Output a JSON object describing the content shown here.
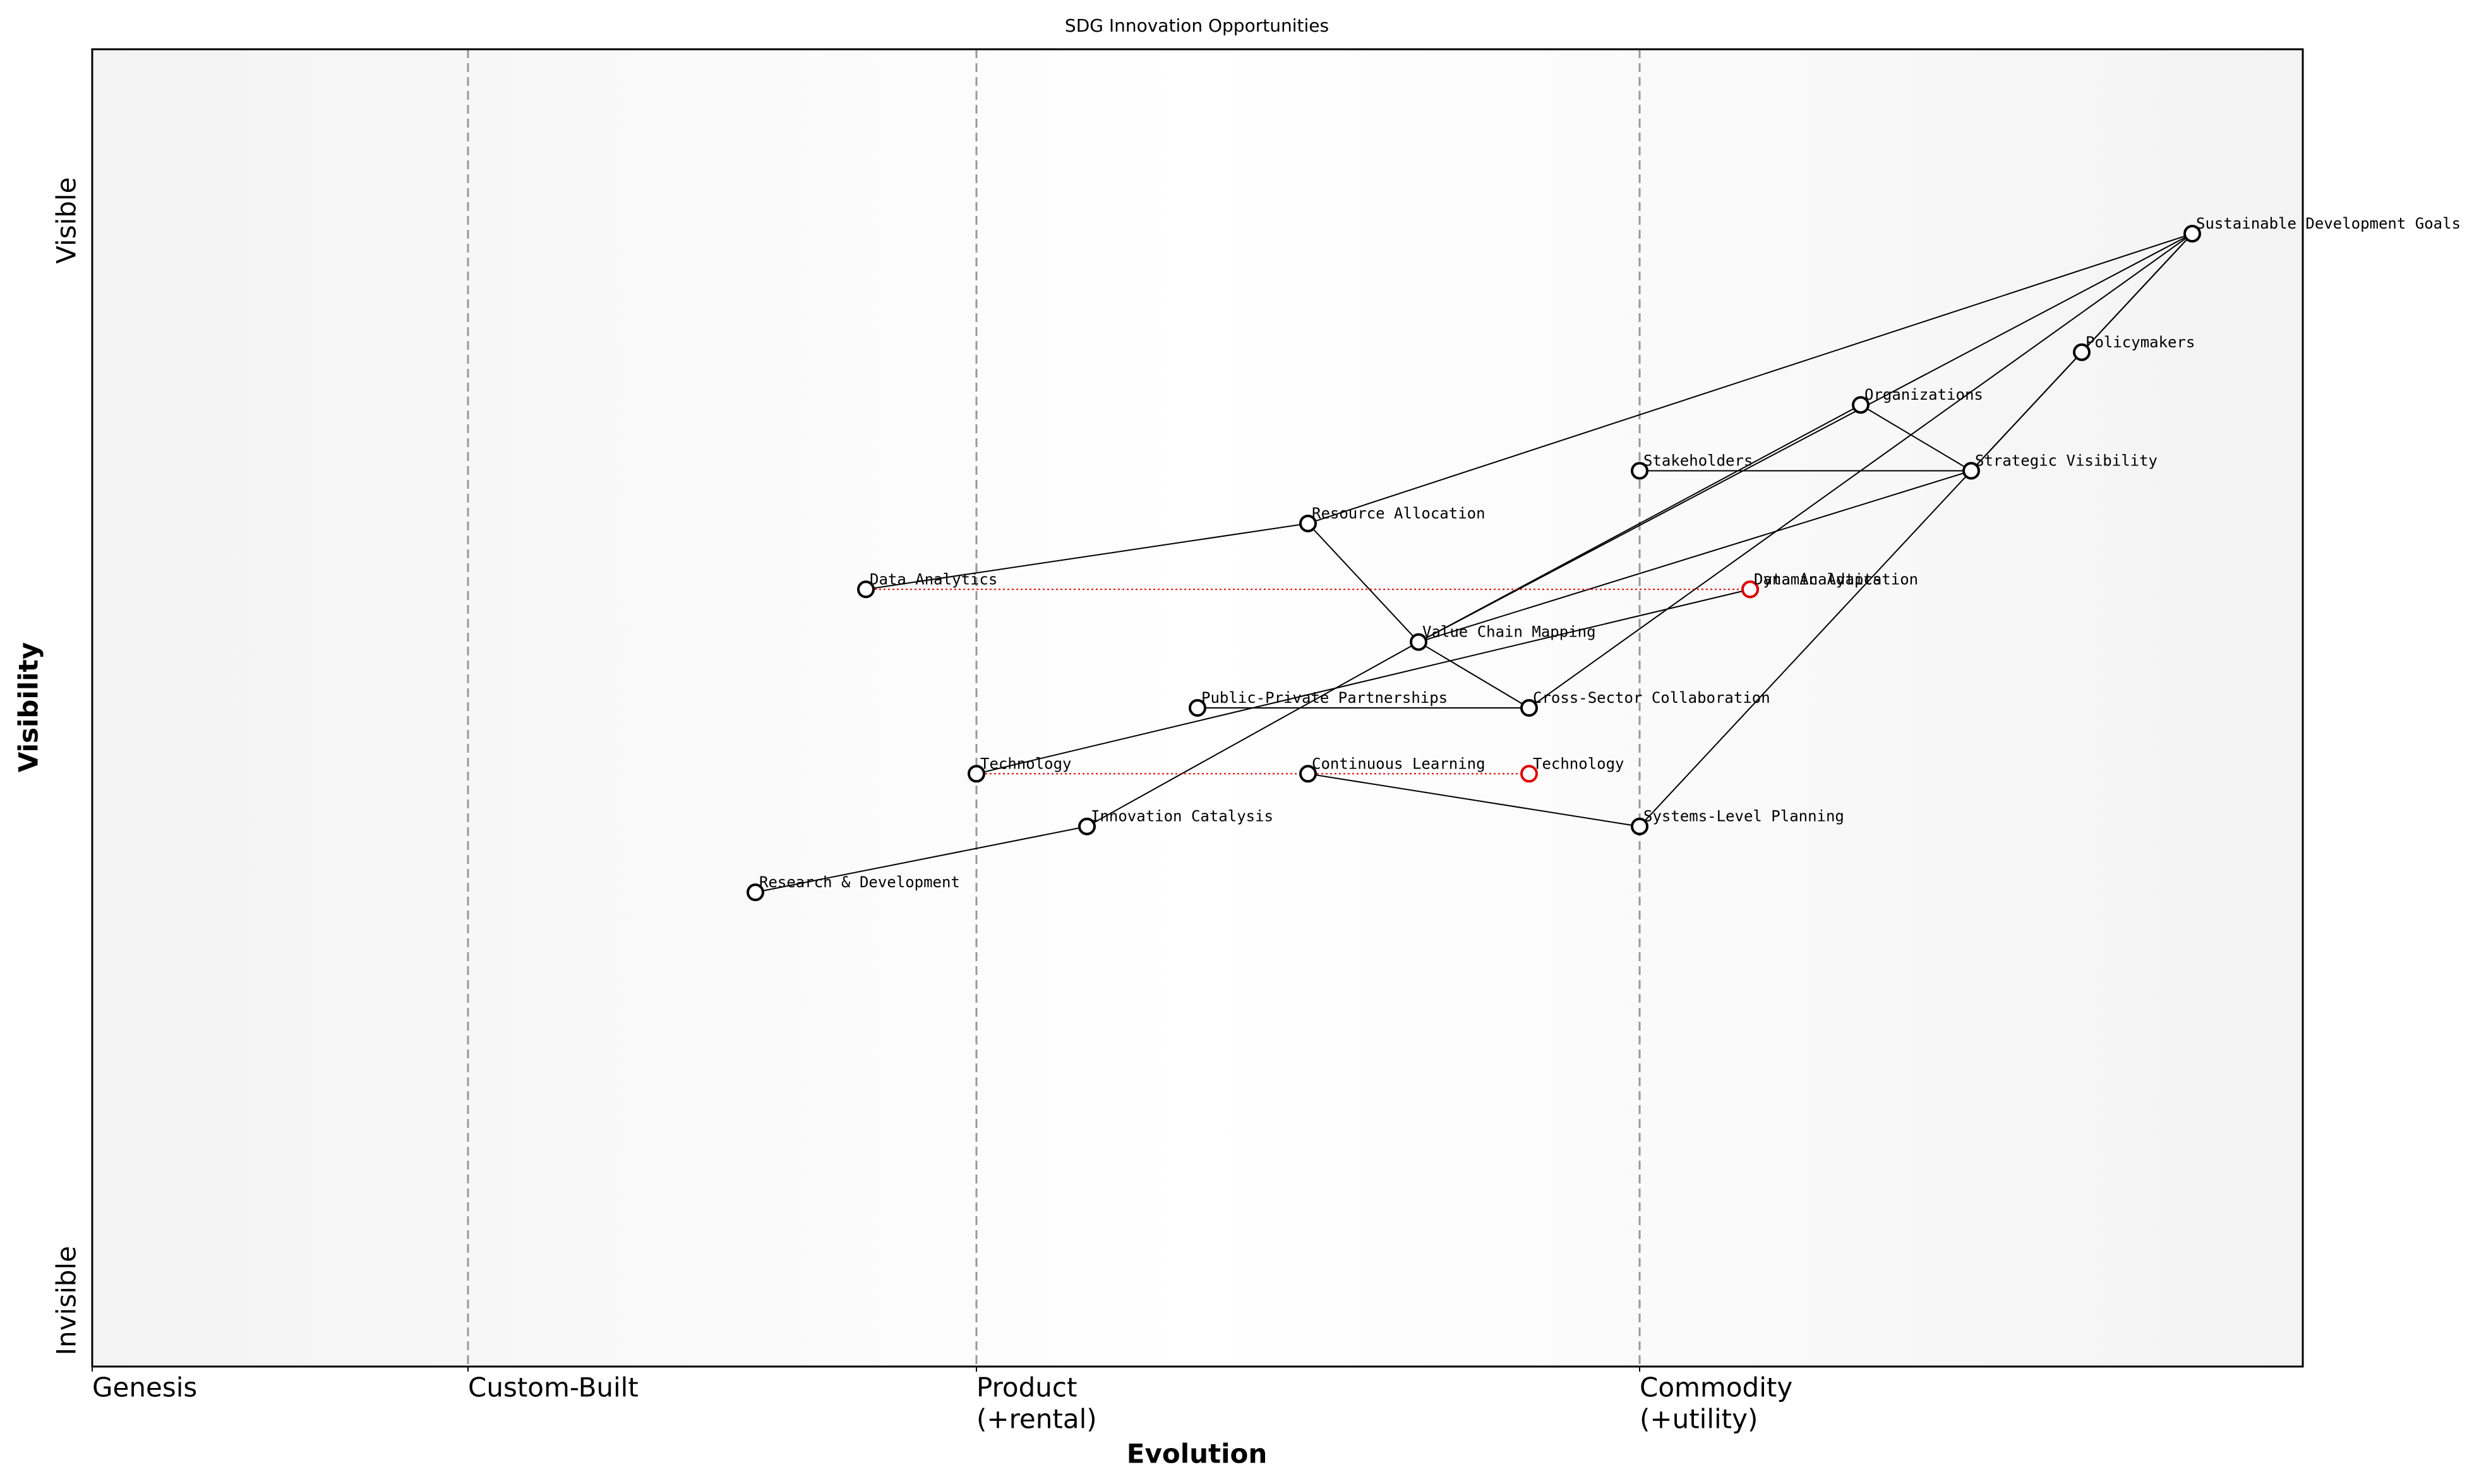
{
  "chart_data": {
    "type": "wardley",
    "title": "SDG Innovation Opportunities",
    "x_label": "Evolution",
    "y_label": "Visibility",
    "xlim": [
      0,
      1
    ],
    "ylim": [
      0,
      1
    ],
    "xticks": [
      {
        "value": 0,
        "label": [
          "Genesis"
        ]
      },
      {
        "value": 0.17,
        "label": [
          "Custom-Built"
        ]
      },
      {
        "value": 0.4,
        "label": [
          "Product",
          "(+rental)"
        ]
      },
      {
        "value": 0.7,
        "label": [
          "Commodity",
          "(+utility)"
        ]
      }
    ],
    "yticks": [
      {
        "value": 0.05,
        "label": "Invisible"
      },
      {
        "value": 0.87,
        "label": "Visible"
      }
    ],
    "grid": true,
    "nodes": [
      {
        "name": "Sustainable Development Goals",
        "evolution": 0.95,
        "visibility": 0.86
      },
      {
        "name": "Policymakers",
        "evolution": 0.9,
        "visibility": 0.77
      },
      {
        "name": "Organizations",
        "evolution": 0.8,
        "visibility": 0.73
      },
      {
        "name": "Strategic Visibility",
        "evolution": 0.85,
        "visibility": 0.68
      },
      {
        "name": "Stakeholders",
        "evolution": 0.7,
        "visibility": 0.68
      },
      {
        "name": "Resource Allocation",
        "evolution": 0.55,
        "visibility": 0.64
      },
      {
        "name": "Data Analytics",
        "evolution": 0.35,
        "visibility": 0.59
      },
      {
        "name": "Dynamic Adaptation",
        "evolution": 0.75,
        "visibility": 0.59
      },
      {
        "name": "Value Chain Mapping",
        "evolution": 0.6,
        "visibility": 0.55
      },
      {
        "name": "Public-Private Partnerships",
        "evolution": 0.5,
        "visibility": 0.5
      },
      {
        "name": "Cross-Sector Collaboration",
        "evolution": 0.65,
        "visibility": 0.5
      },
      {
        "name": "Technology",
        "evolution": 0.4,
        "visibility": 0.45
      },
      {
        "name": "Continuous Learning",
        "evolution": 0.55,
        "visibility": 0.45
      },
      {
        "name": "Innovation Catalysis",
        "evolution": 0.45,
        "visibility": 0.41
      },
      {
        "name": "Systems-Level Planning",
        "evolution": 0.7,
        "visibility": 0.41
      },
      {
        "name": "Research & Development",
        "evolution": 0.3,
        "visibility": 0.36
      }
    ],
    "links": [
      [
        0,
        5
      ],
      [
        0,
        3
      ],
      [
        0,
        10
      ],
      [
        0,
        8
      ],
      [
        0,
        1
      ],
      [
        1,
        14
      ],
      [
        2,
        8
      ],
      [
        2,
        3
      ],
      [
        4,
        3
      ],
      [
        3,
        8
      ],
      [
        5,
        6
      ],
      [
        5,
        8
      ],
      [
        8,
        10
      ],
      [
        9,
        10
      ],
      [
        8,
        13
      ],
      [
        13,
        15
      ],
      [
        12,
        14
      ],
      [
        11,
        7
      ]
    ],
    "evolve": [
      {
        "node": 6,
        "name": "Data Analytics",
        "evolution": 0.75
      },
      {
        "node": 11,
        "name": "Technology",
        "evolution": 0.65
      }
    ],
    "link_color": "#000000",
    "evolve_color": "#dd0000"
  }
}
